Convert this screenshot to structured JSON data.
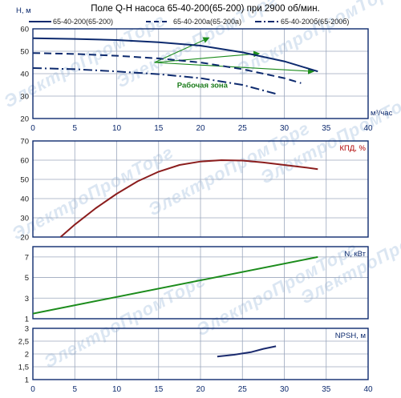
{
  "title": "Поле Q-H насоса 65-40-200(65-200) при 2900 об/мин.",
  "legend": [
    "65-40-200(65-200)",
    "65-40-200а(65-200а)",
    "65-40-200б(65-200б)"
  ],
  "watermark": "ЭлектроПромТорг",
  "colors": {
    "frame": "#0d2a6e",
    "grid": "#9ba7bd",
    "qh": "#0d2a6e",
    "eff": "#8b1d1d",
    "power": "#1c8c1c",
    "npsh": "#1a2a6e",
    "zone": "#1c8c1c"
  },
  "chart_data": [
    {
      "type": "line",
      "ylabel": "Н, м",
      "xlabel": "м³/час",
      "xlim": [
        0,
        40
      ],
      "ylim": [
        20,
        60
      ],
      "xticks": [
        0,
        5,
        10,
        15,
        20,
        25,
        30,
        35,
        40
      ],
      "yticks": [
        20,
        30,
        40,
        50,
        60
      ],
      "annotation": "Рабочая зона",
      "series": [
        {
          "name": "65-40-200(65-200)",
          "style": "solid",
          "x": [
            0,
            5,
            10,
            15,
            20,
            25,
            30,
            34
          ],
          "y": [
            55.8,
            55.5,
            55,
            54,
            52.5,
            49.5,
            45.5,
            41
          ]
        },
        {
          "name": "65-40-200а(65-200а)",
          "style": "dashed",
          "x": [
            0,
            5,
            10,
            15,
            20,
            25,
            30,
            32
          ],
          "y": [
            49.2,
            48.8,
            48,
            46.8,
            45,
            42,
            38,
            35.8
          ]
        },
        {
          "name": "65-40-200б(65-200б)",
          "style": "dashdot",
          "x": [
            0,
            5,
            10,
            15,
            20,
            25,
            29
          ],
          "y": [
            42.5,
            42,
            41,
            39.8,
            38,
            35,
            31
          ]
        }
      ],
      "work_zone": [
        {
          "from": [
            14.5,
            45
          ],
          "to": [
            33.5,
            41
          ]
        },
        {
          "from": [
            14.5,
            45
          ],
          "to": [
            21,
            56
          ]
        },
        {
          "from": [
            14.5,
            45
          ],
          "to": [
            27,
            49
          ]
        }
      ]
    },
    {
      "type": "line",
      "ylabel": "КПД, %",
      "xlim": [
        0,
        40
      ],
      "ylim": [
        20,
        70
      ],
      "yticks": [
        20,
        30,
        40,
        50,
        60,
        70
      ],
      "series": [
        {
          "x": [
            3.3,
            5,
            7.5,
            10,
            12.5,
            15,
            17.5,
            20,
            22.5,
            25,
            27.5,
            30,
            32.5,
            34
          ],
          "y": [
            20,
            26.5,
            35,
            42.5,
            49,
            54,
            57.5,
            59.3,
            60,
            59.8,
            58.8,
            57.5,
            56.2,
            55.3
          ]
        }
      ]
    },
    {
      "type": "line",
      "ylabel": "N, кВт",
      "xlim": [
        0,
        40
      ],
      "ylim": [
        1,
        8
      ],
      "yticks": [
        1,
        3,
        5,
        7
      ],
      "series": [
        {
          "x": [
            0,
            34
          ],
          "y": [
            1.5,
            7
          ]
        }
      ]
    },
    {
      "type": "line",
      "ylabel": "NPSH, м",
      "xlabel": "",
      "xlim": [
        0,
        40
      ],
      "ylim": [
        1,
        3
      ],
      "xticks": [
        0,
        5,
        10,
        15,
        20,
        25,
        30,
        35,
        40
      ],
      "yticks": [
        1,
        1.5,
        2,
        2.5,
        3
      ],
      "series": [
        {
          "x": [
            22,
            24,
            26,
            27.5,
            29
          ],
          "y": [
            1.9,
            1.97,
            2.07,
            2.2,
            2.3
          ]
        }
      ]
    }
  ]
}
